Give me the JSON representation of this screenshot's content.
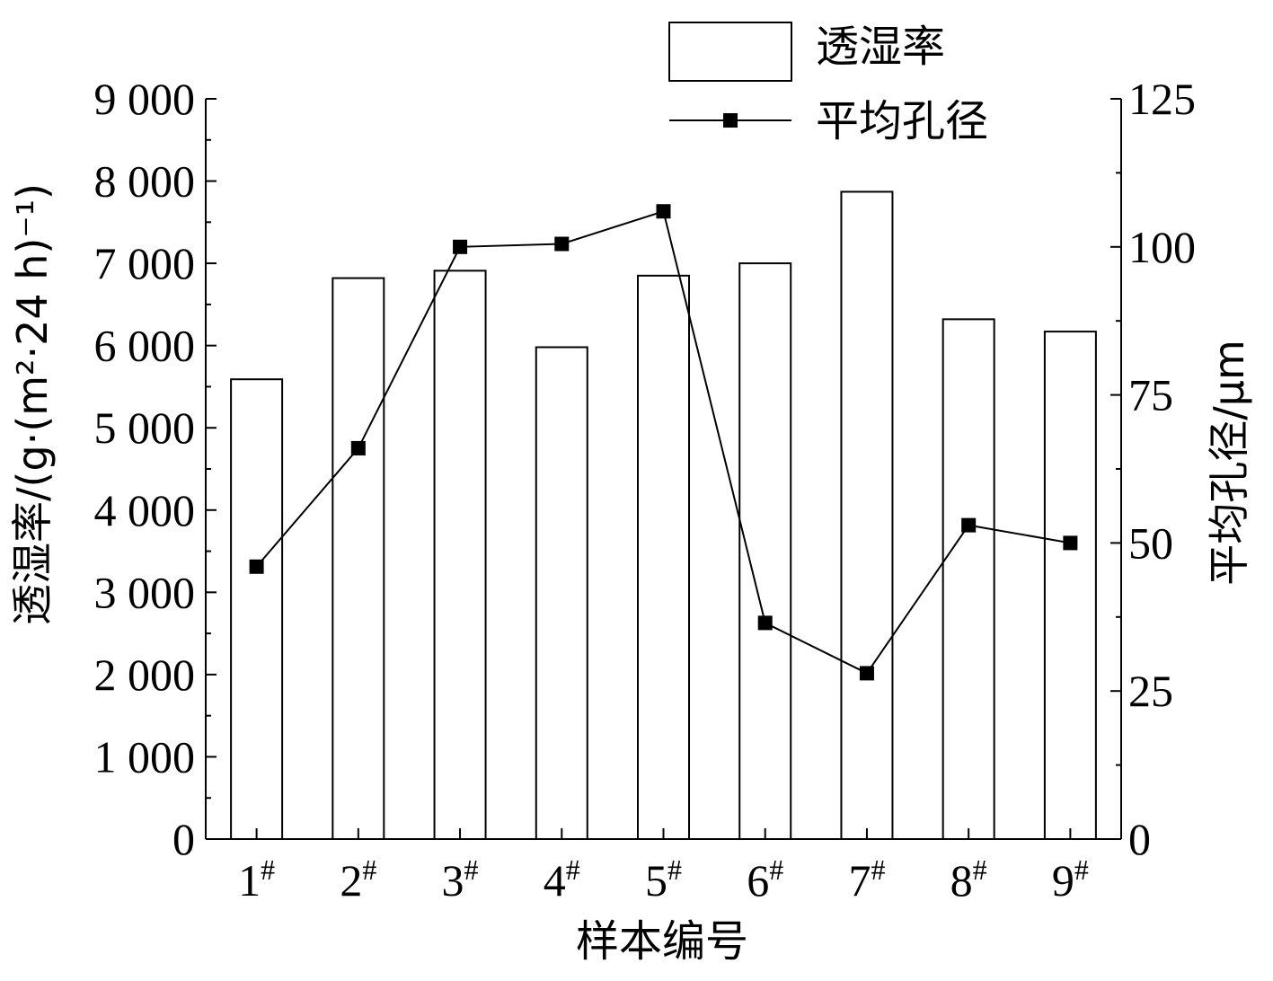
{
  "chart_data": {
    "type": "bar",
    "title": "",
    "xlabel": "样本编号",
    "ylabel_left": "透湿率/(g·(m²·24 h)⁻¹)",
    "ylabel_right": "平均孔径/μm",
    "categories": [
      "1#",
      "2#",
      "3#",
      "4#",
      "5#",
      "6#",
      "7#",
      "8#",
      "9#"
    ],
    "category_labels": [
      {
        "main": "1",
        "sup": "#"
      },
      {
        "main": "2",
        "sup": "#"
      },
      {
        "main": "3",
        "sup": "#"
      },
      {
        "main": "4",
        "sup": "#"
      },
      {
        "main": "5",
        "sup": "#"
      },
      {
        "main": "6",
        "sup": "#"
      },
      {
        "main": "7",
        "sup": "#"
      },
      {
        "main": "8",
        "sup": "#"
      },
      {
        "main": "9",
        "sup": "#"
      }
    ],
    "series": [
      {
        "name": "透湿率",
        "type": "bar",
        "axis": "left",
        "values": [
          5590,
          6820,
          6910,
          5980,
          6850,
          7000,
          7870,
          6320,
          6170
        ]
      },
      {
        "name": "平均孔径",
        "type": "line",
        "axis": "right",
        "marker": "square",
        "values": [
          46,
          66,
          100,
          100.5,
          106,
          36.5,
          28,
          53,
          50
        ]
      }
    ],
    "ylim_left": [
      0,
      9000
    ],
    "ylim_right": [
      0,
      125
    ],
    "yticks_left": [
      0,
      1000,
      2000,
      3000,
      4000,
      5000,
      6000,
      7000,
      8000,
      9000
    ],
    "ytick_labels_left": [
      "0",
      "1 000",
      "2 000",
      "3 000",
      "4 000",
      "5 000",
      "6 000",
      "7 000",
      "8 000",
      "9 000"
    ],
    "yticks_right": [
      0,
      25,
      50,
      75,
      100,
      125
    ],
    "ytick_labels_right": [
      "0",
      "25",
      "50",
      "75",
      "100",
      "125"
    ],
    "grid": false,
    "legend_position": "top-right"
  }
}
